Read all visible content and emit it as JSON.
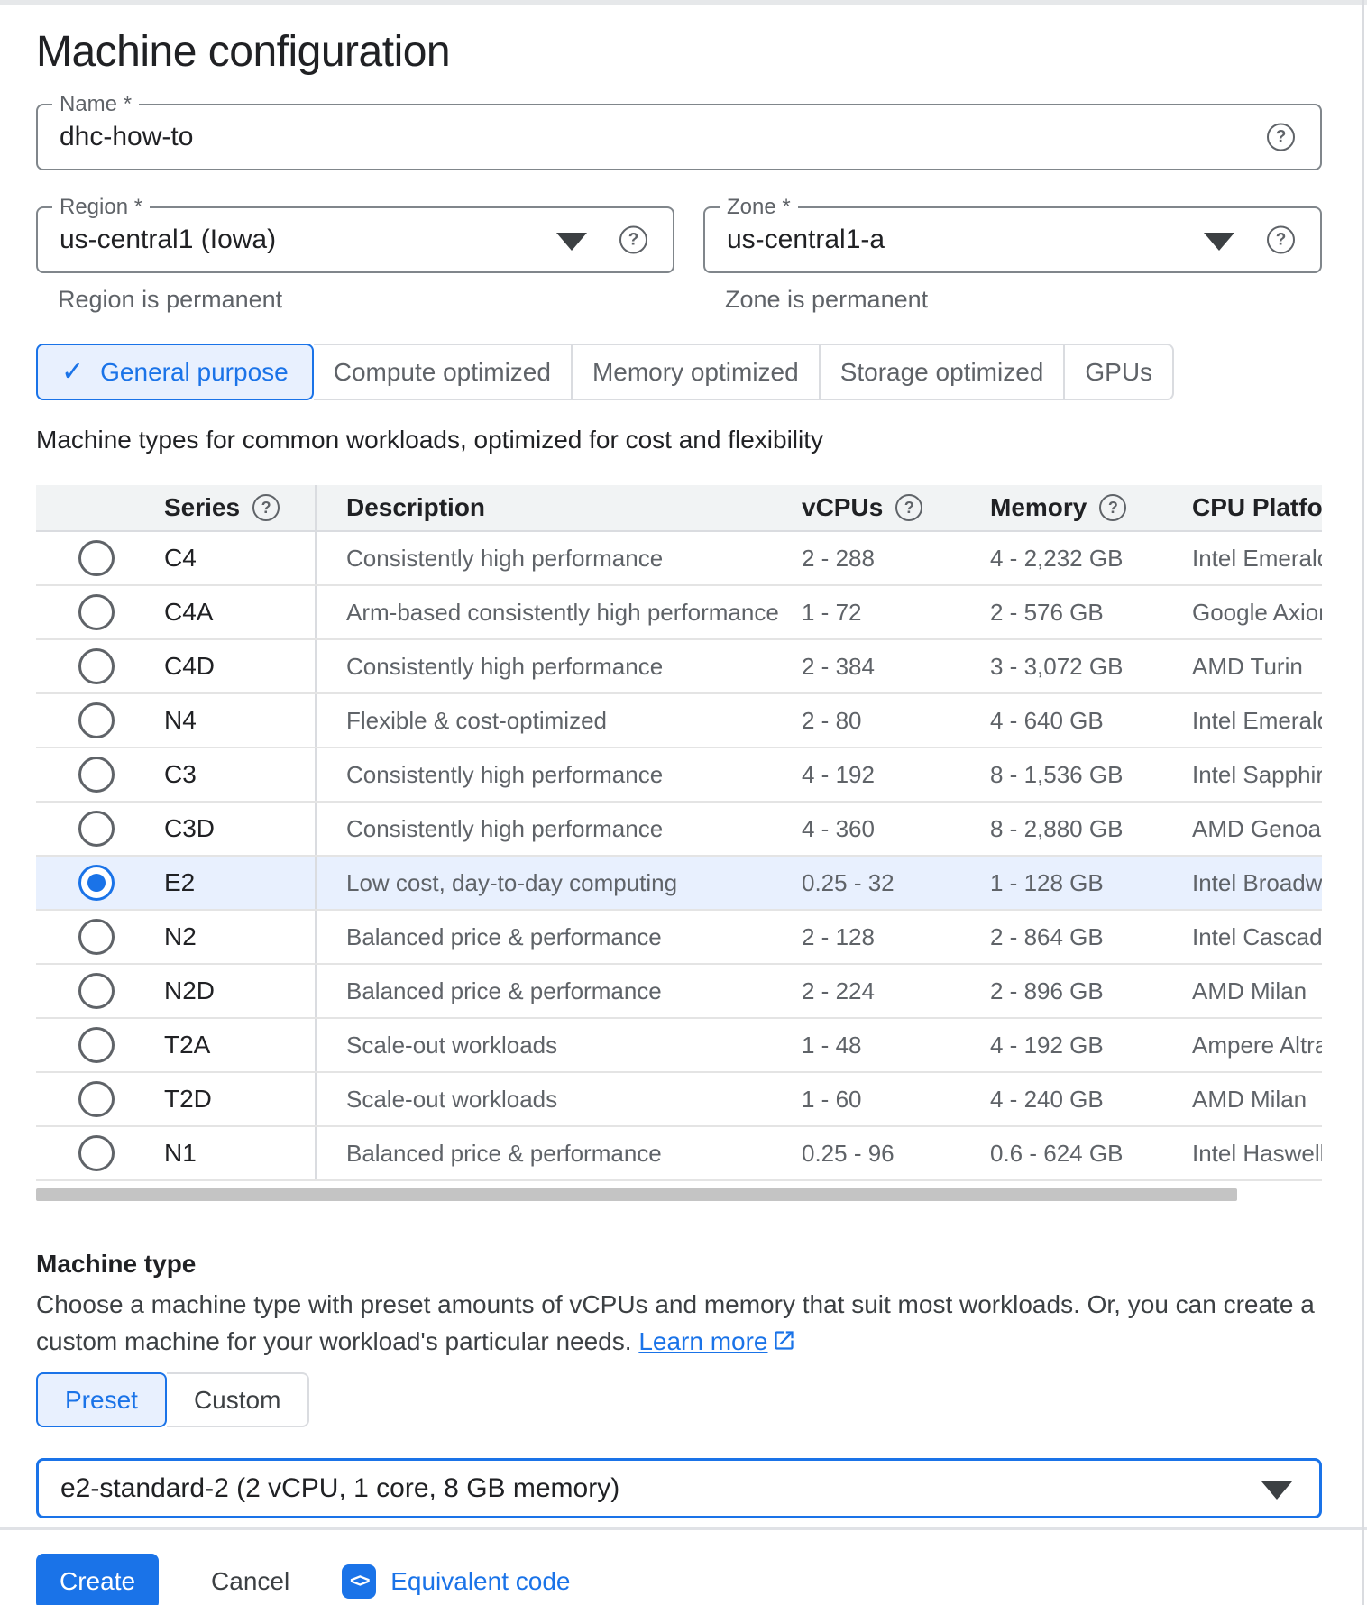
{
  "page": {
    "title": "Machine configuration"
  },
  "name_field": {
    "label": "Name *",
    "value": "dhc-how-to"
  },
  "region_field": {
    "label": "Region *",
    "value": "us-central1 (Iowa)",
    "helper": "Region is permanent"
  },
  "zone_field": {
    "label": "Zone *",
    "value": "us-central1-a",
    "helper": "Zone is permanent"
  },
  "family_tabs": {
    "items": [
      {
        "label": "General purpose",
        "selected": true
      },
      {
        "label": "Compute optimized",
        "selected": false
      },
      {
        "label": "Memory optimized",
        "selected": false
      },
      {
        "label": "Storage optimized",
        "selected": false
      },
      {
        "label": "GPUs",
        "selected": false
      }
    ],
    "description": "Machine types for common workloads, optimized for cost and flexibility"
  },
  "series_table": {
    "headers": {
      "series": "Series",
      "description": "Description",
      "vcpus": "vCPUs",
      "memory": "Memory",
      "cpu_platform": "CPU Platform"
    },
    "rows": [
      {
        "series": "C4",
        "description": "Consistently high performance",
        "vcpus": "2 - 288",
        "memory": "4 - 2,232 GB",
        "cpu_platform": "Intel Emerald",
        "selected": false
      },
      {
        "series": "C4A",
        "description": "Arm-based consistently high performance",
        "vcpus": "1 - 72",
        "memory": "2 - 576 GB",
        "cpu_platform": "Google Axion",
        "selected": false
      },
      {
        "series": "C4D",
        "description": "Consistently high performance",
        "vcpus": "2 - 384",
        "memory": "3 - 3,072 GB",
        "cpu_platform": "AMD Turin",
        "selected": false
      },
      {
        "series": "N4",
        "description": "Flexible & cost-optimized",
        "vcpus": "2 - 80",
        "memory": "4 - 640 GB",
        "cpu_platform": "Intel Emerald",
        "selected": false
      },
      {
        "series": "C3",
        "description": "Consistently high performance",
        "vcpus": "4 - 192",
        "memory": "8 - 1,536 GB",
        "cpu_platform": "Intel Sapphire",
        "selected": false
      },
      {
        "series": "C3D",
        "description": "Consistently high performance",
        "vcpus": "4 - 360",
        "memory": "8 - 2,880 GB",
        "cpu_platform": "AMD Genoa",
        "selected": false
      },
      {
        "series": "E2",
        "description": "Low cost, day-to-day computing",
        "vcpus": "0.25 - 32",
        "memory": "1 - 128 GB",
        "cpu_platform": "Intel Broadwell",
        "selected": true
      },
      {
        "series": "N2",
        "description": "Balanced price & performance",
        "vcpus": "2 - 128",
        "memory": "2 - 864 GB",
        "cpu_platform": "Intel Cascade",
        "selected": false
      },
      {
        "series": "N2D",
        "description": "Balanced price & performance",
        "vcpus": "2 - 224",
        "memory": "2 - 896 GB",
        "cpu_platform": "AMD Milan",
        "selected": false
      },
      {
        "series": "T2A",
        "description": "Scale-out workloads",
        "vcpus": "1 - 48",
        "memory": "4 - 192 GB",
        "cpu_platform": "Ampere Altra",
        "selected": false
      },
      {
        "series": "T2D",
        "description": "Scale-out workloads",
        "vcpus": "1 - 60",
        "memory": "4 - 240 GB",
        "cpu_platform": "AMD Milan",
        "selected": false
      },
      {
        "series": "N1",
        "description": "Balanced price & performance",
        "vcpus": "0.25 - 96",
        "memory": "0.6 - 624 GB",
        "cpu_platform": "Intel Haswell",
        "selected": false
      }
    ]
  },
  "machine_type": {
    "heading": "Machine type",
    "description": "Choose a machine type with preset amounts of vCPUs and memory that suit most workloads. Or, you can create a custom machine for your workload's particular needs.",
    "learn_more_label": "Learn more",
    "preset_toggle": [
      {
        "label": "Preset",
        "selected": true
      },
      {
        "label": "Custom",
        "selected": false
      }
    ],
    "selected_value": "e2-standard-2 (2 vCPU, 1 core, 8 GB memory)"
  },
  "actions": {
    "create_label": "Create",
    "cancel_label": "Cancel",
    "equivalent_code_label": "Equivalent code"
  },
  "icons": {
    "help": "help-circle",
    "dropdown": "caret-down",
    "selected_check": "checkmark",
    "learn_more": "open-in-new",
    "equivalent_code": "code-brackets",
    "help_glyph": "?"
  },
  "colors": {
    "accent_blue": "#1a73e8",
    "selected_bg": "#e8f0fe",
    "table_header_bg": "#f1f3f4",
    "create_button_bg": "#1a73e8"
  }
}
